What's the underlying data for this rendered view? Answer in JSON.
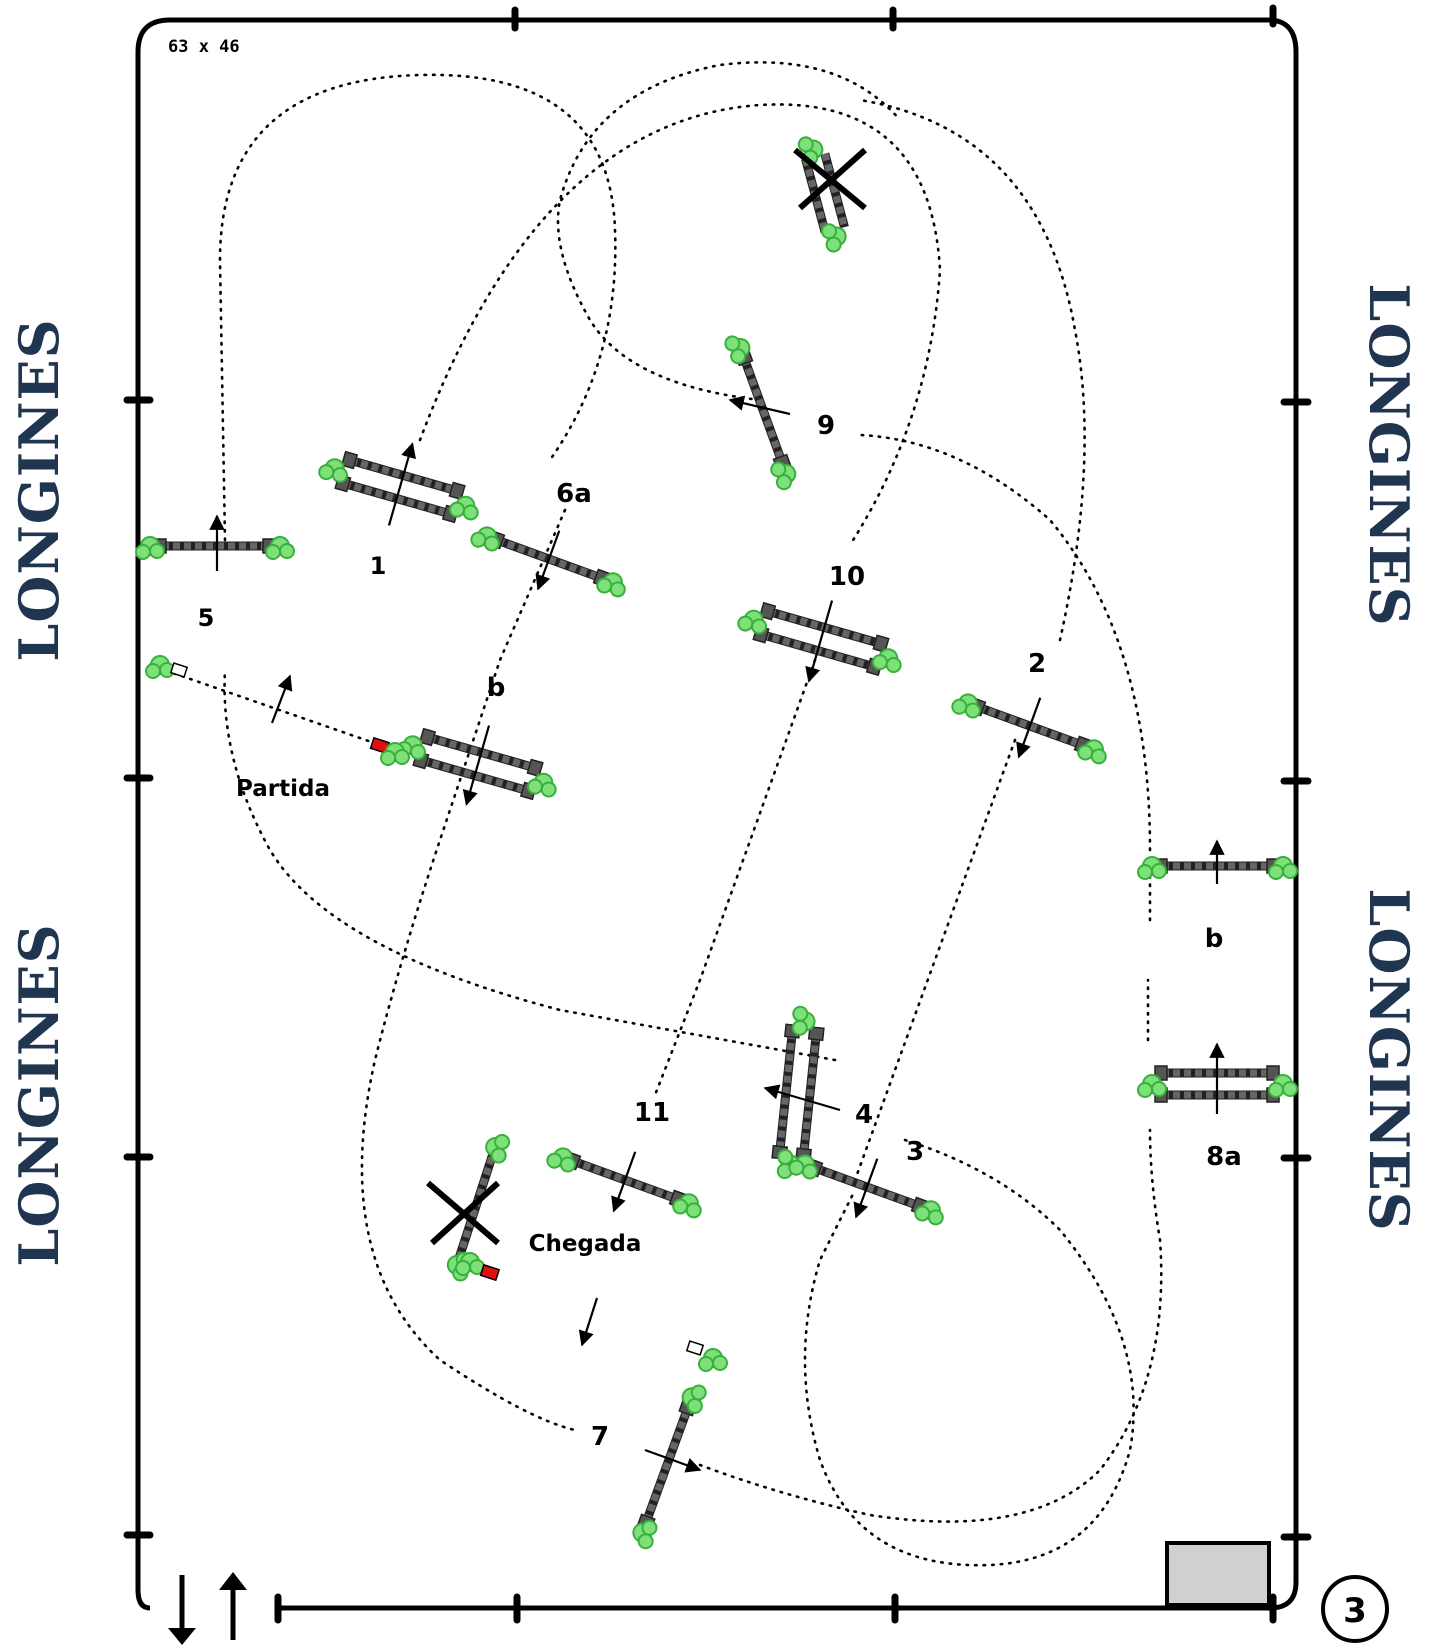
{
  "course": {
    "arena_size": "63 x 46",
    "plan_number": "3",
    "sponsor_logo_text": "LONGINES",
    "labels": {
      "fence_1": "1",
      "fence_2": "2",
      "fence_3": "3",
      "fence_4": "4",
      "fence_5": "5",
      "fence_6a": "6a",
      "fence_6b": "b",
      "fence_7": "7",
      "fence_8a": "8a",
      "fence_8b": "b",
      "fence_9": "9",
      "fence_10": "10",
      "fence_11": "11",
      "start": "Partida",
      "finish": "Chegada"
    },
    "colors": {
      "bush": "#7ee07a",
      "dark_bush": "#2e8b2e",
      "start_flag": "#e01010",
      "gate": "#d0d0d0",
      "logo": "#1f3550"
    },
    "icons": [
      "bush-icon",
      "direction-arrow-icon",
      "cross-out-icon",
      "in-out-arrows-icon"
    ]
  }
}
